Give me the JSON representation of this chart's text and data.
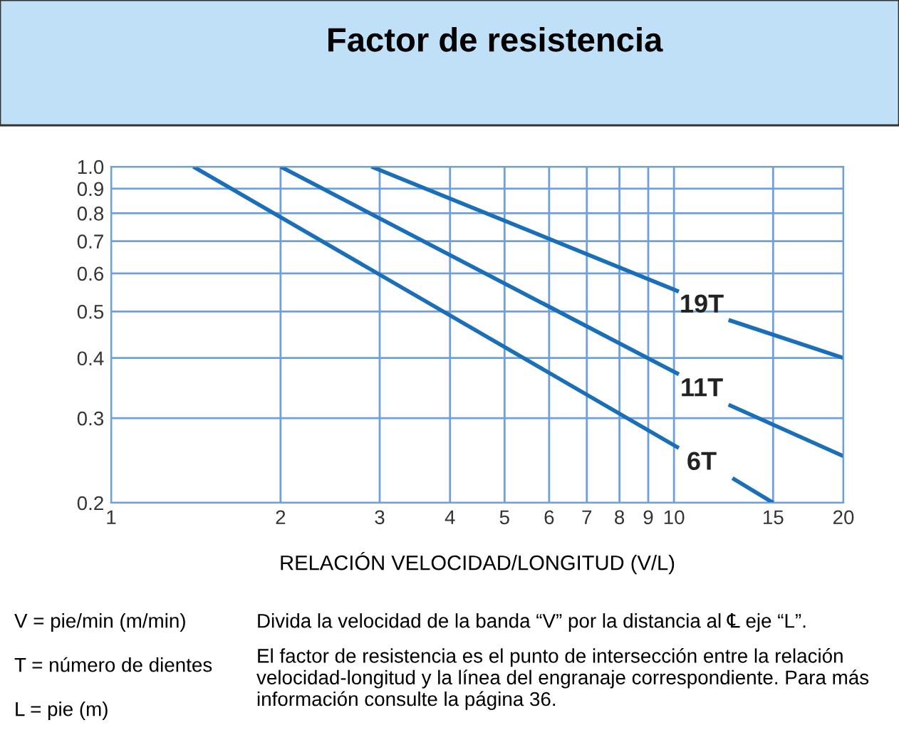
{
  "chart_data": {
    "type": "line",
    "title": "Factor de resistencia",
    "xlabel": "RELACIÓN VELOCIDAD/LONGITUD (V/L)",
    "log": "xy",
    "xlim": [
      1,
      20
    ],
    "ylim": [
      0.2,
      1.0
    ],
    "xticks": [
      1,
      2,
      3,
      4,
      5,
      6,
      7,
      8,
      9,
      10,
      15,
      20
    ],
    "yticks": [
      0.2,
      0.3,
      0.4,
      0.5,
      0.6,
      0.7,
      0.8,
      0.9,
      {
        "value": 1.0,
        "label": "1.0"
      }
    ],
    "grid": true,
    "legend": false,
    "marker": "none",
    "line_style": "solid",
    "series": [
      {
        "name": "6T",
        "color": "#1a6fb8",
        "x": [
          1.4,
          10.2,
          11.2,
          12.7,
          15
        ],
        "values": [
          1.0,
          0.26,
          null,
          0.225,
          0.2
        ]
      },
      {
        "name": "11T",
        "color": "#1a6fb8",
        "x": [
          2,
          10.2,
          11.2,
          12.5,
          20
        ],
        "values": [
          1.0,
          0.37,
          null,
          0.32,
          0.25
        ]
      },
      {
        "name": "19T",
        "color": "#1a6fb8",
        "x": [
          2.9,
          10.2,
          11.2,
          12.5,
          20
        ],
        "values": [
          1.0,
          0.55,
          null,
          0.48,
          0.4
        ]
      }
    ],
    "annotations": [
      "V = pie/min (m/min)",
      "T = número de dientes",
      "L = pie (m)",
      "Divida la velocidad de la banda “V” por la distancia al ℄ eje “L”.",
      "El factor de resistencia es el punto de intersección entre la relación velocidad-longitud y la línea del engranaje correspondiente. Para más información consulte la página 36."
    ]
  }
}
